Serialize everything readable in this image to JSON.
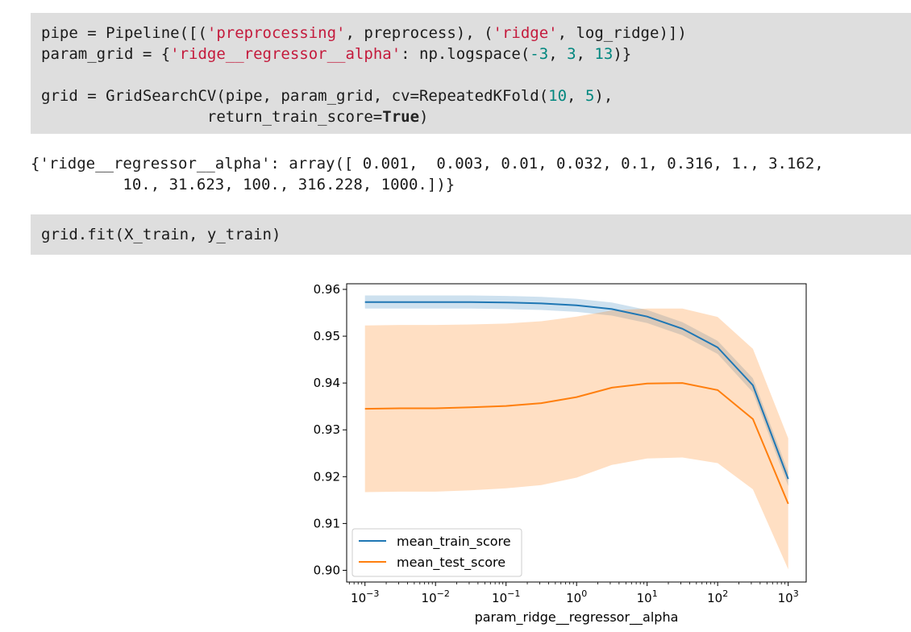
{
  "cell1": {
    "line1": {
      "t1": "pipe = Pipeline([(",
      "s1": "'preprocessing'",
      "t2": ", preprocess), (",
      "s2": "'ridge'",
      "t3": ", log_ridge)])"
    },
    "line2": {
      "t1": "param_grid = {",
      "s1": "'ridge__regressor__alpha'",
      "t2": ": np.logspace(",
      "n1": "-3",
      "t3": ", ",
      "n2": "3",
      "t4": ", ",
      "n3": "13",
      "t5": ")}"
    },
    "line3": {
      "t1": "grid = GridSearchCV(pipe, param_grid, cv=RepeatedKFold(",
      "n1": "10",
      "t2": ", ",
      "n2": "5",
      "t3": "),"
    },
    "line4": {
      "t1": "                  return_train_score=",
      "k1": "True",
      "t2": ")"
    }
  },
  "output1": {
    "line1": "{'ridge__regressor__alpha': array([ 0.001,  0.003, 0.01, 0.032, 0.1, 0.316, 1., 3.162,",
    "line2": "          10., 31.623, 100., 316.228, 1000.])}"
  },
  "cell2": {
    "line1": "grid.fit(X_train, y_train)"
  },
  "chart_data": {
    "type": "line",
    "xscale": "log",
    "x": [
      0.001,
      0.00316,
      0.01,
      0.0316,
      0.1,
      0.316,
      1,
      3.16,
      10,
      31.6,
      100,
      316,
      1000
    ],
    "series": [
      {
        "name": "mean_train_score",
        "color": "#1f77b4",
        "values": [
          0.9573,
          0.9573,
          0.9573,
          0.9573,
          0.9572,
          0.957,
          0.9566,
          0.9558,
          0.9542,
          0.9516,
          0.9476,
          0.9395,
          0.9195
        ],
        "band_upper": [
          0.9587,
          0.9587,
          0.9587,
          0.9587,
          0.9586,
          0.9584,
          0.958,
          0.9572,
          0.9556,
          0.953,
          0.949,
          0.941,
          0.921
        ],
        "band_lower": [
          0.9559,
          0.9559,
          0.9559,
          0.9559,
          0.9558,
          0.9556,
          0.9552,
          0.9544,
          0.9528,
          0.9502,
          0.9462,
          0.938,
          0.918
        ]
      },
      {
        "name": "mean_test_score",
        "color": "#ff7f0e",
        "values": [
          0.9345,
          0.9346,
          0.9346,
          0.9348,
          0.9351,
          0.9357,
          0.937,
          0.939,
          0.9399,
          0.94,
          0.9385,
          0.9323,
          0.9142
        ],
        "band_upper": [
          0.9523,
          0.9524,
          0.9524,
          0.9525,
          0.9527,
          0.9532,
          0.9542,
          0.9555,
          0.9559,
          0.9559,
          0.9541,
          0.9473,
          0.9282
        ],
        "band_lower": [
          0.9167,
          0.9168,
          0.9168,
          0.9171,
          0.9175,
          0.9182,
          0.9198,
          0.9225,
          0.9239,
          0.9241,
          0.9229,
          0.9173,
          0.9002
        ]
      }
    ],
    "xlabel": "param_ridge__regressor__alpha",
    "ylabel": "",
    "xlim": [
      0.00055,
      1800
    ],
    "ylim": [
      0.8975,
      0.9612
    ],
    "yticks": [
      "0.90",
      "0.91",
      "0.92",
      "0.93",
      "0.94",
      "0.95",
      "0.96"
    ],
    "ytick_values": [
      0.9,
      0.91,
      0.92,
      0.93,
      0.94,
      0.95,
      0.96
    ],
    "xtick_exponents": [
      "-3",
      "-2",
      "-1",
      "0",
      "1",
      "2",
      "3"
    ],
    "xtick_base": "10",
    "legend_position": "lower-left",
    "grid": false
  }
}
